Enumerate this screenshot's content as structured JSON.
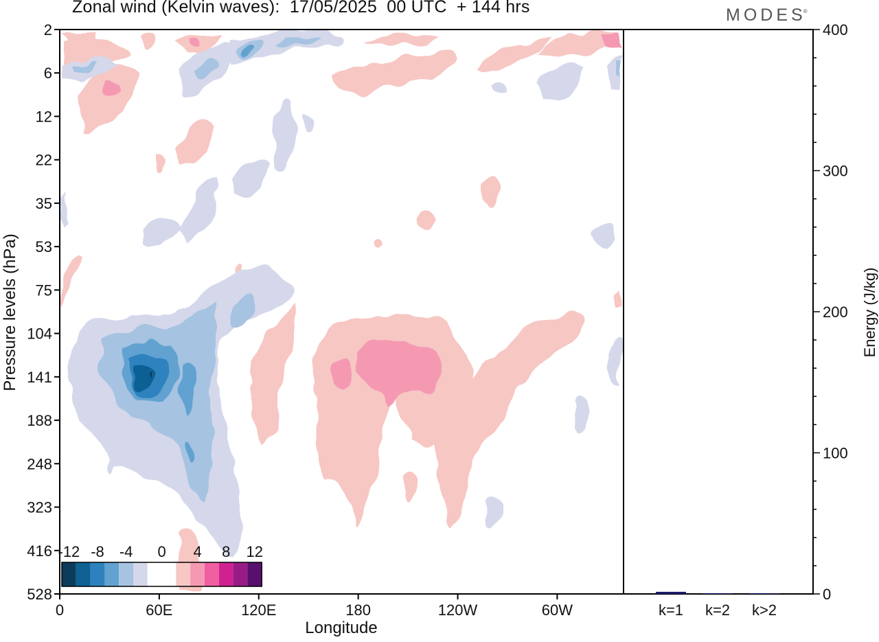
{
  "header": {
    "title": "Zonal wind (Kelvin waves):  17/05/2025  00 UTC  + 144 hrs",
    "brand": "MODES",
    "brand_mark": "®"
  },
  "colors": {
    "neg12": "#0b3c5c",
    "neg10": "#0f6194",
    "neg8": "#2d82bd",
    "neg6": "#62a2d0",
    "neg4": "#a6c3e2",
    "neg2": "#d5d8ea",
    "zero": "#ffffff",
    "pos2": "#f7c7c3",
    "pos4": "#f599b3",
    "pos6": "#ef5fa2",
    "pos8": "#cf2290",
    "pos10": "#981c86",
    "pos12": "#58106e",
    "bar": "#1a1a6e"
  },
  "chart_data": [
    {
      "type": "heatmap",
      "title": "Zonal wind (Kelvin waves):  17/05/2025  00 UTC  + 144 hrs",
      "xlabel": "Longitude",
      "ylabel": "Pressure levels (hPa)",
      "x_ticks": [
        "0",
        "60E",
        "120E",
        "180",
        "120W",
        "60W"
      ],
      "x_tick_degrees": [
        0,
        60,
        120,
        180,
        240,
        300
      ],
      "xlim": [
        0,
        340
      ],
      "y_ticks": [
        "2",
        "6",
        "12",
        "22",
        "35",
        "53",
        "75",
        "104",
        "141",
        "188",
        "248",
        "323",
        "416",
        "528"
      ],
      "colorbar_labels": [
        "-12",
        "-8",
        "-4",
        "0",
        "4",
        "8",
        "12"
      ],
      "colorbar_levels": [
        -14,
        -12,
        -10,
        -8,
        -6,
        -4,
        -2,
        2,
        4,
        6,
        8,
        10,
        12,
        14
      ],
      "regions": [
        {
          "name": "easterly-upper-troposphere",
          "sign": "negative",
          "min_value": -12,
          "lon_range": [
            30,
            110
          ],
          "p_range": [
            75,
            500
          ]
        },
        {
          "name": "westerly-upper-troposphere",
          "sign": "positive",
          "max_value": 6,
          "lon_range": [
            150,
            310
          ],
          "p_range": [
            90,
            420
          ]
        },
        {
          "name": "stratosphere-alternating",
          "sign": "mixed",
          "max_value": 6,
          "min_value": -6,
          "lon_range": [
            0,
            340
          ],
          "p_range": [
            2,
            60
          ]
        }
      ]
    },
    {
      "type": "bar",
      "ylabel": "Energy (J/kg)",
      "categories": [
        "k=1",
        "k=2",
        "k>2"
      ],
      "values": [
        1.5,
        0.2,
        0.5
      ],
      "ylim": [
        0,
        400
      ],
      "y_ticks": [
        "0",
        "100",
        "200",
        "300",
        "400"
      ]
    }
  ]
}
